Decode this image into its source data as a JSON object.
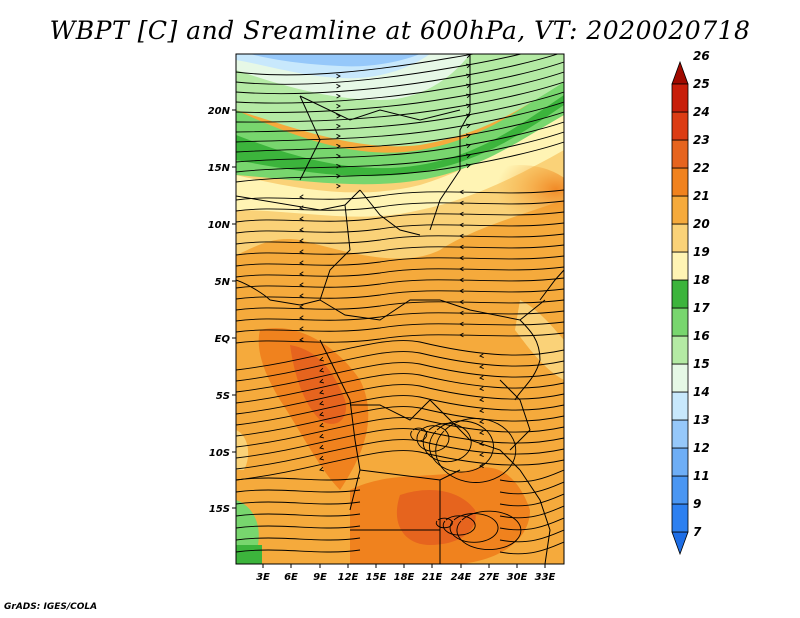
{
  "title": "WBPT [C] and Sreamline at 600hPa, VT: 2020020718",
  "credit": "GrADS: IGES/COLA",
  "map": {
    "lat_ticks": [
      "20N",
      "15N",
      "10N",
      "5N",
      "EQ",
      "5S",
      "10S",
      "15S"
    ],
    "lon_ticks": [
      "3E",
      "6E",
      "9E",
      "12E",
      "15E",
      "18E",
      "21E",
      "24E",
      "27E",
      "30E",
      "33E"
    ]
  },
  "colorbar": {
    "labels": [
      "7",
      "9",
      "11",
      "12",
      "13",
      "14",
      "15",
      "16",
      "17",
      "18",
      "19",
      "20",
      "21",
      "22",
      "23",
      "24",
      "25",
      "26"
    ],
    "colors": [
      "#1e6ee6",
      "#2d80f0",
      "#4a96f2",
      "#6eaef6",
      "#96c8fa",
      "#c8e8fc",
      "#e6f8e6",
      "#b4eaa4",
      "#78d66e",
      "#3cb43c",
      "#fff4b4",
      "#fad278",
      "#f5aa3c",
      "#f0821e",
      "#e6641e",
      "#dc3c14",
      "#c81e0a",
      "#a00a00"
    ]
  }
}
